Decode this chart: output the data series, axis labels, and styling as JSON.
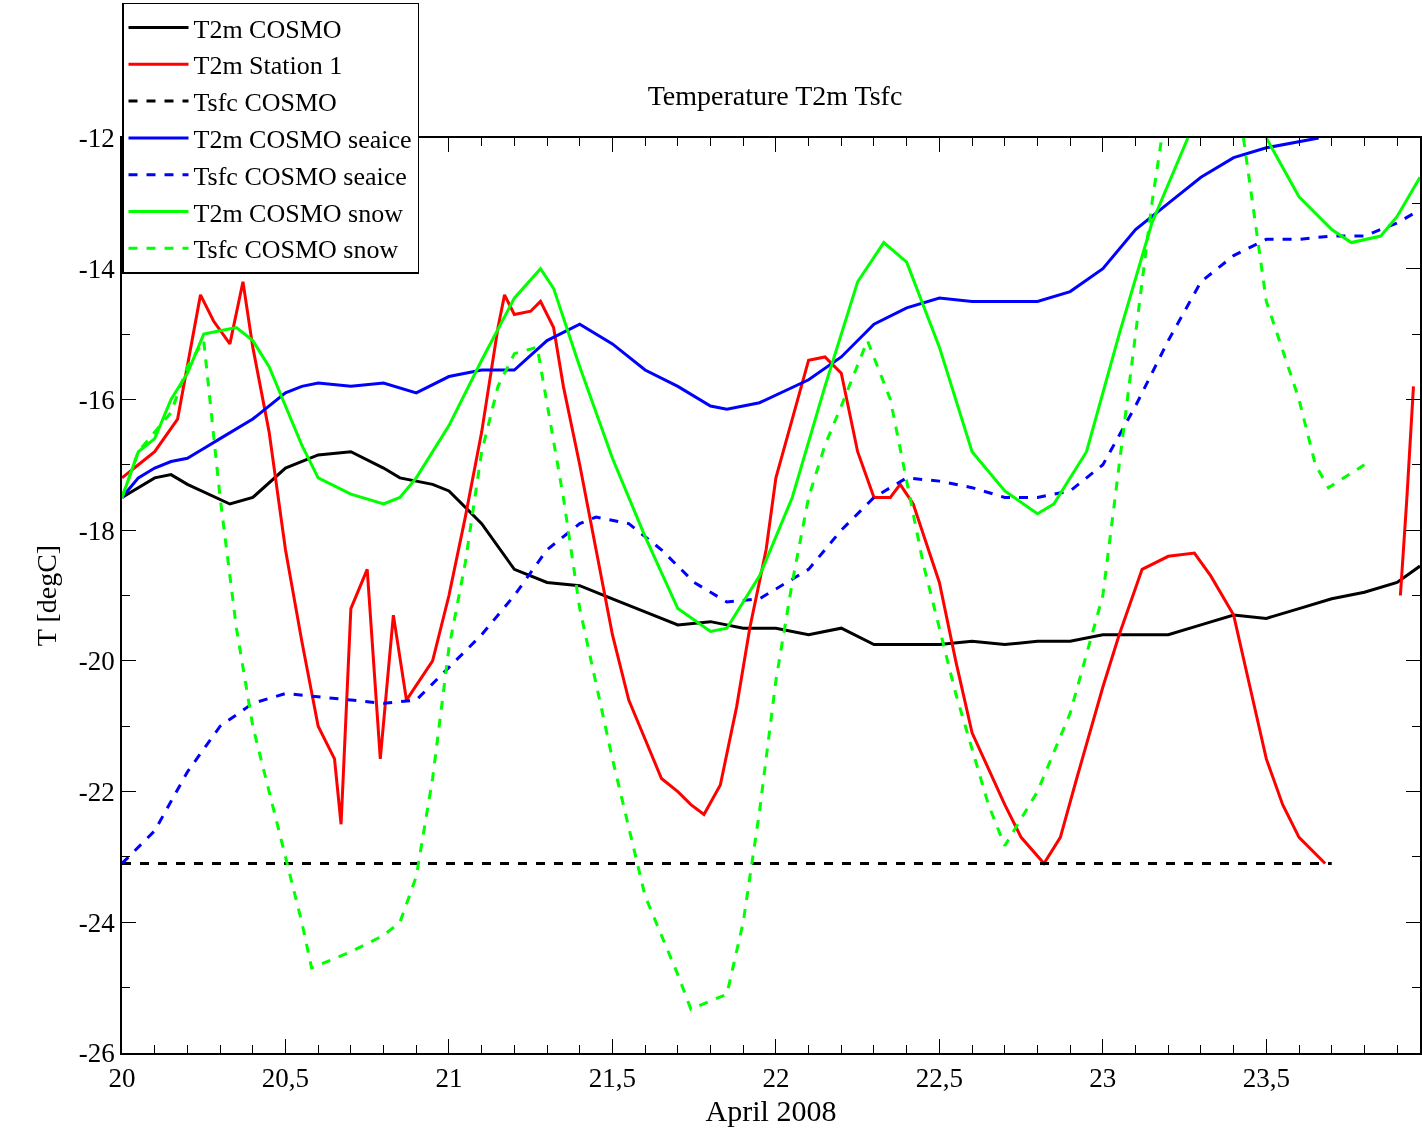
{
  "chart_data": {
    "type": "line",
    "title": "Temperature T2m Tsfc",
    "xlabel": "April 2008",
    "ylabel": "T [degC]",
    "xlim": [
      20,
      23.97
    ],
    "ylim": [
      -26,
      -12
    ],
    "xticks": [
      20,
      {
        "value": 20.5,
        "label": "20,5"
      },
      21,
      {
        "value": 21.5,
        "label": "21,5"
      },
      22,
      {
        "value": 22.5,
        "label": "22,5"
      },
      23,
      {
        "value": 23.5,
        "label": "23,5"
      }
    ],
    "yticks": [
      -26,
      -24,
      -22,
      -20,
      -18,
      -16,
      -14,
      -12
    ],
    "legend": "top left",
    "marker": "none",
    "series": [
      {
        "name": "T2m COSMO",
        "color": "#000000",
        "line_style": "solid",
        "x": [
          20,
          20.1,
          20.15,
          20.2,
          20.33,
          20.4,
          20.5,
          20.6,
          20.7,
          20.8,
          20.85,
          20.95,
          21.0,
          21.1,
          21.2,
          21.3,
          21.4,
          21.5,
          21.6,
          21.7,
          21.8,
          21.9,
          22.0,
          22.1,
          22.2,
          22.3,
          22.5,
          22.6,
          22.7,
          22.8,
          22.9,
          23.0,
          23.2,
          23.3,
          23.4,
          23.5,
          23.6,
          23.7,
          23.8,
          23.9,
          23.97
        ],
        "values": [
          -17.5,
          -17.2,
          -17.15,
          -17.3,
          -17.6,
          -17.5,
          -17.05,
          -16.85,
          -16.8,
          -17.05,
          -17.2,
          -17.3,
          -17.4,
          -17.9,
          -18.6,
          -18.8,
          -18.85,
          -19.05,
          -19.25,
          -19.45,
          -19.4,
          -19.5,
          -19.5,
          -19.6,
          -19.5,
          -19.75,
          -19.75,
          -19.7,
          -19.75,
          -19.7,
          -19.7,
          -19.6,
          -19.6,
          -19.45,
          -19.3,
          -19.35,
          -19.2,
          -19.05,
          -18.95,
          -18.8,
          -18.55
        ]
      },
      {
        "name": "T2m Station 1",
        "color": "#ff0000",
        "line_style": "solid",
        "x": [
          20,
          20.05,
          20.1,
          20.17,
          20.24,
          20.28,
          20.33,
          20.37,
          20.4,
          20.45,
          20.5,
          20.55,
          20.6,
          20.63,
          20.65,
          20.67,
          20.7,
          20.75,
          20.79,
          20.83,
          20.87,
          20.95,
          21.0,
          21.05,
          21.1,
          21.15,
          21.17,
          21.2,
          21.25,
          21.28,
          21.32,
          21.35,
          21.4,
          21.45,
          21.5,
          21.55,
          21.6,
          21.65,
          21.7,
          21.74,
          21.78,
          21.83,
          21.88,
          21.92,
          21.97,
          22.0,
          22.05,
          22.1,
          22.15,
          22.2,
          22.25,
          22.3,
          22.35,
          22.38,
          22.42,
          22.5,
          22.55,
          22.6,
          22.7,
          22.75,
          22.82,
          22.87,
          22.92,
          23.0,
          23.05,
          23.12,
          23.2,
          23.28,
          23.33,
          23.4,
          23.45,
          23.5,
          23.55,
          23.6,
          23.68,
          23.8,
          23.91,
          23.93,
          23.95
        ],
        "values": [
          -17.2,
          -17.0,
          -16.8,
          -16.3,
          -14.4,
          -14.8,
          -15.15,
          -14.2,
          -15.2,
          -16.5,
          -18.3,
          -19.7,
          -21.0,
          -21.3,
          -21.5,
          -22.5,
          -19.2,
          -18.6,
          -21.5,
          -19.3,
          -20.6,
          -20.0,
          -19.0,
          -17.8,
          -16.5,
          -14.9,
          -14.4,
          -14.7,
          -14.65,
          -14.5,
          -14.9,
          -15.8,
          -17.0,
          -18.3,
          -19.6,
          -20.6,
          -21.2,
          -21.8,
          -22.0,
          -22.2,
          -22.35,
          -21.9,
          -20.7,
          -19.5,
          -18.3,
          -17.2,
          -16.3,
          -15.4,
          -15.35,
          -15.6,
          -16.8,
          -17.5,
          -17.5,
          -17.3,
          -17.6,
          -18.8,
          -20.0,
          -21.1,
          -22.2,
          -22.7,
          -23.1,
          -22.7,
          -21.8,
          -20.4,
          -19.6,
          -18.6,
          -18.4,
          -18.35,
          -18.7,
          -19.3,
          -20.4,
          -21.5,
          -22.2,
          -22.7,
          -23.1,
          null,
          -19.0,
          -17.5,
          -15.8
        ]
      },
      {
        "name": "Tsfc COSMO",
        "color": "#000000",
        "line_style": "dashed",
        "x": [
          20,
          23.7
        ],
        "values": [
          -23.1,
          -23.1
        ]
      },
      {
        "name": "T2m COSMO seaice",
        "color": "#0000ff",
        "line_style": "solid",
        "x": [
          20,
          20.05,
          20.1,
          20.15,
          20.2,
          20.25,
          20.3,
          20.4,
          20.5,
          20.55,
          20.6,
          20.7,
          20.8,
          20.9,
          21.0,
          21.1,
          21.2,
          21.3,
          21.4,
          21.5,
          21.6,
          21.7,
          21.8,
          21.85,
          21.95,
          22.1,
          22.2,
          22.3,
          22.4,
          22.5,
          22.6,
          22.7,
          22.8,
          22.9,
          23.0,
          23.1,
          23.2,
          23.3,
          23.4,
          23.5,
          23.66
        ],
        "values": [
          -17.5,
          -17.2,
          -17.05,
          -16.95,
          -16.9,
          -16.75,
          -16.6,
          -16.3,
          -15.9,
          -15.8,
          -15.75,
          -15.8,
          -15.75,
          -15.9,
          -15.65,
          -15.55,
          -15.55,
          -15.1,
          -14.85,
          -15.15,
          -15.55,
          -15.8,
          -16.1,
          -16.15,
          -16.05,
          -15.7,
          -15.35,
          -14.85,
          -14.6,
          -14.45,
          -14.5,
          -14.5,
          -14.5,
          -14.35,
          -14.0,
          -13.4,
          -13.0,
          -12.6,
          -12.3,
          -12.15,
          -12.0
        ]
      },
      {
        "name": "Tsfc COSMO seaice",
        "color": "#0000ff",
        "line_style": "dashed",
        "x": [
          20,
          20.1,
          20.2,
          20.3,
          20.4,
          20.5,
          20.6,
          20.7,
          20.8,
          20.9,
          21.0,
          21.1,
          21.2,
          21.3,
          21.4,
          21.45,
          21.55,
          21.65,
          21.75,
          21.85,
          21.95,
          22.1,
          22.2,
          22.3,
          22.4,
          22.5,
          22.6,
          22.7,
          22.8,
          22.9,
          23.0,
          23.1,
          23.2,
          23.3,
          23.4,
          23.5,
          23.6,
          23.7,
          23.8,
          23.9,
          23.97
        ],
        "values": [
          -23.1,
          -22.6,
          -21.7,
          -21.0,
          -20.65,
          -20.5,
          -20.55,
          -20.6,
          -20.65,
          -20.6,
          -20.1,
          -19.6,
          -19.0,
          -18.3,
          -17.9,
          -17.8,
          -17.9,
          -18.3,
          -18.8,
          -19.1,
          -19.05,
          -18.6,
          -18.0,
          -17.5,
          -17.2,
          -17.25,
          -17.35,
          -17.5,
          -17.5,
          -17.4,
          -17.0,
          -16.1,
          -15.1,
          -14.2,
          -13.8,
          -13.55,
          -13.55,
          -13.5,
          -13.5,
          -13.3,
          -13.1
        ]
      },
      {
        "name": "T2m COSMO snow",
        "color": "#00ff00",
        "line_style": "solid",
        "x": [
          20,
          20.05,
          20.1,
          20.15,
          20.2,
          20.25,
          20.3,
          20.35,
          20.4,
          20.45,
          20.5,
          20.55,
          20.6,
          20.7,
          20.8,
          20.85,
          20.9,
          21.0,
          21.1,
          21.2,
          21.28,
          21.32,
          21.4,
          21.5,
          21.6,
          21.7,
          21.8,
          21.85,
          21.95,
          22.05,
          22.15,
          22.25,
          22.33,
          22.4,
          22.5,
          22.6,
          22.7,
          22.8,
          22.85,
          22.95,
          23.05,
          23.15,
          23.26,
          23.38,
          23.5,
          23.6,
          23.7,
          23.76,
          23.85,
          23.9,
          23.97
        ],
        "values": [
          -17.5,
          -16.8,
          -16.6,
          -16.0,
          -15.6,
          -15.0,
          -14.95,
          -14.9,
          -15.1,
          -15.5,
          -16.1,
          -16.7,
          -17.2,
          -17.45,
          -17.6,
          -17.5,
          -17.2,
          -16.4,
          -15.4,
          -14.45,
          -14.0,
          -14.3,
          -15.5,
          -16.9,
          -18.1,
          -19.2,
          -19.55,
          -19.5,
          -18.7,
          -17.5,
          -15.8,
          -14.2,
          -13.6,
          -13.9,
          -15.2,
          -16.8,
          -17.4,
          -17.75,
          -17.6,
          -16.8,
          -15.0,
          -13.3,
          -12.0,
          null,
          -12.0,
          -12.9,
          -13.4,
          -13.6,
          -13.5,
          -13.2,
          -12.6
        ]
      },
      {
        "name": "Tsfc COSMO snow",
        "color": "#00ff00",
        "line_style": "dashed",
        "x": [
          20,
          20.05,
          20.1,
          20.15,
          20.2,
          20.25,
          20.3,
          20.35,
          20.4,
          20.45,
          20.5,
          20.55,
          20.58,
          20.7,
          20.8,
          20.85,
          20.9,
          20.95,
          21.0,
          21.05,
          21.1,
          21.15,
          21.2,
          21.27,
          21.35,
          21.4,
          21.5,
          21.6,
          21.7,
          21.74,
          21.85,
          21.9,
          21.95,
          22.0,
          22.05,
          22.1,
          22.15,
          22.2,
          22.28,
          22.35,
          22.45,
          22.55,
          22.65,
          22.7,
          22.8,
          22.9,
          23.0,
          23.05,
          23.1,
          23.15,
          23.18,
          23.3,
          23.43,
          23.5,
          23.6,
          23.65,
          23.69,
          23.8
        ],
        "values": [
          -17.5,
          -16.8,
          -16.5,
          -16.2,
          -15.5,
          -15.1,
          -17.5,
          -19.5,
          -21.0,
          -22.0,
          -23.0,
          -24.0,
          -24.7,
          -24.45,
          -24.2,
          -24.0,
          -23.3,
          -21.8,
          -19.8,
          -18.5,
          -16.8,
          -15.8,
          -15.3,
          -15.2,
          -17.5,
          -19.2,
          -21.5,
          -23.6,
          -24.8,
          -25.33,
          -25.1,
          -24.0,
          -22.3,
          -20.3,
          -18.8,
          -17.5,
          -16.7,
          -16.1,
          -15.1,
          -16.0,
          -18.5,
          -20.5,
          -22.2,
          -22.83,
          -22.0,
          -20.8,
          -19.0,
          -17.0,
          -15.0,
          -13.0,
          -12.0,
          null,
          -12.0,
          -14.5,
          -16.0,
          -17.0,
          -17.35,
          -17.0
        ]
      }
    ]
  }
}
